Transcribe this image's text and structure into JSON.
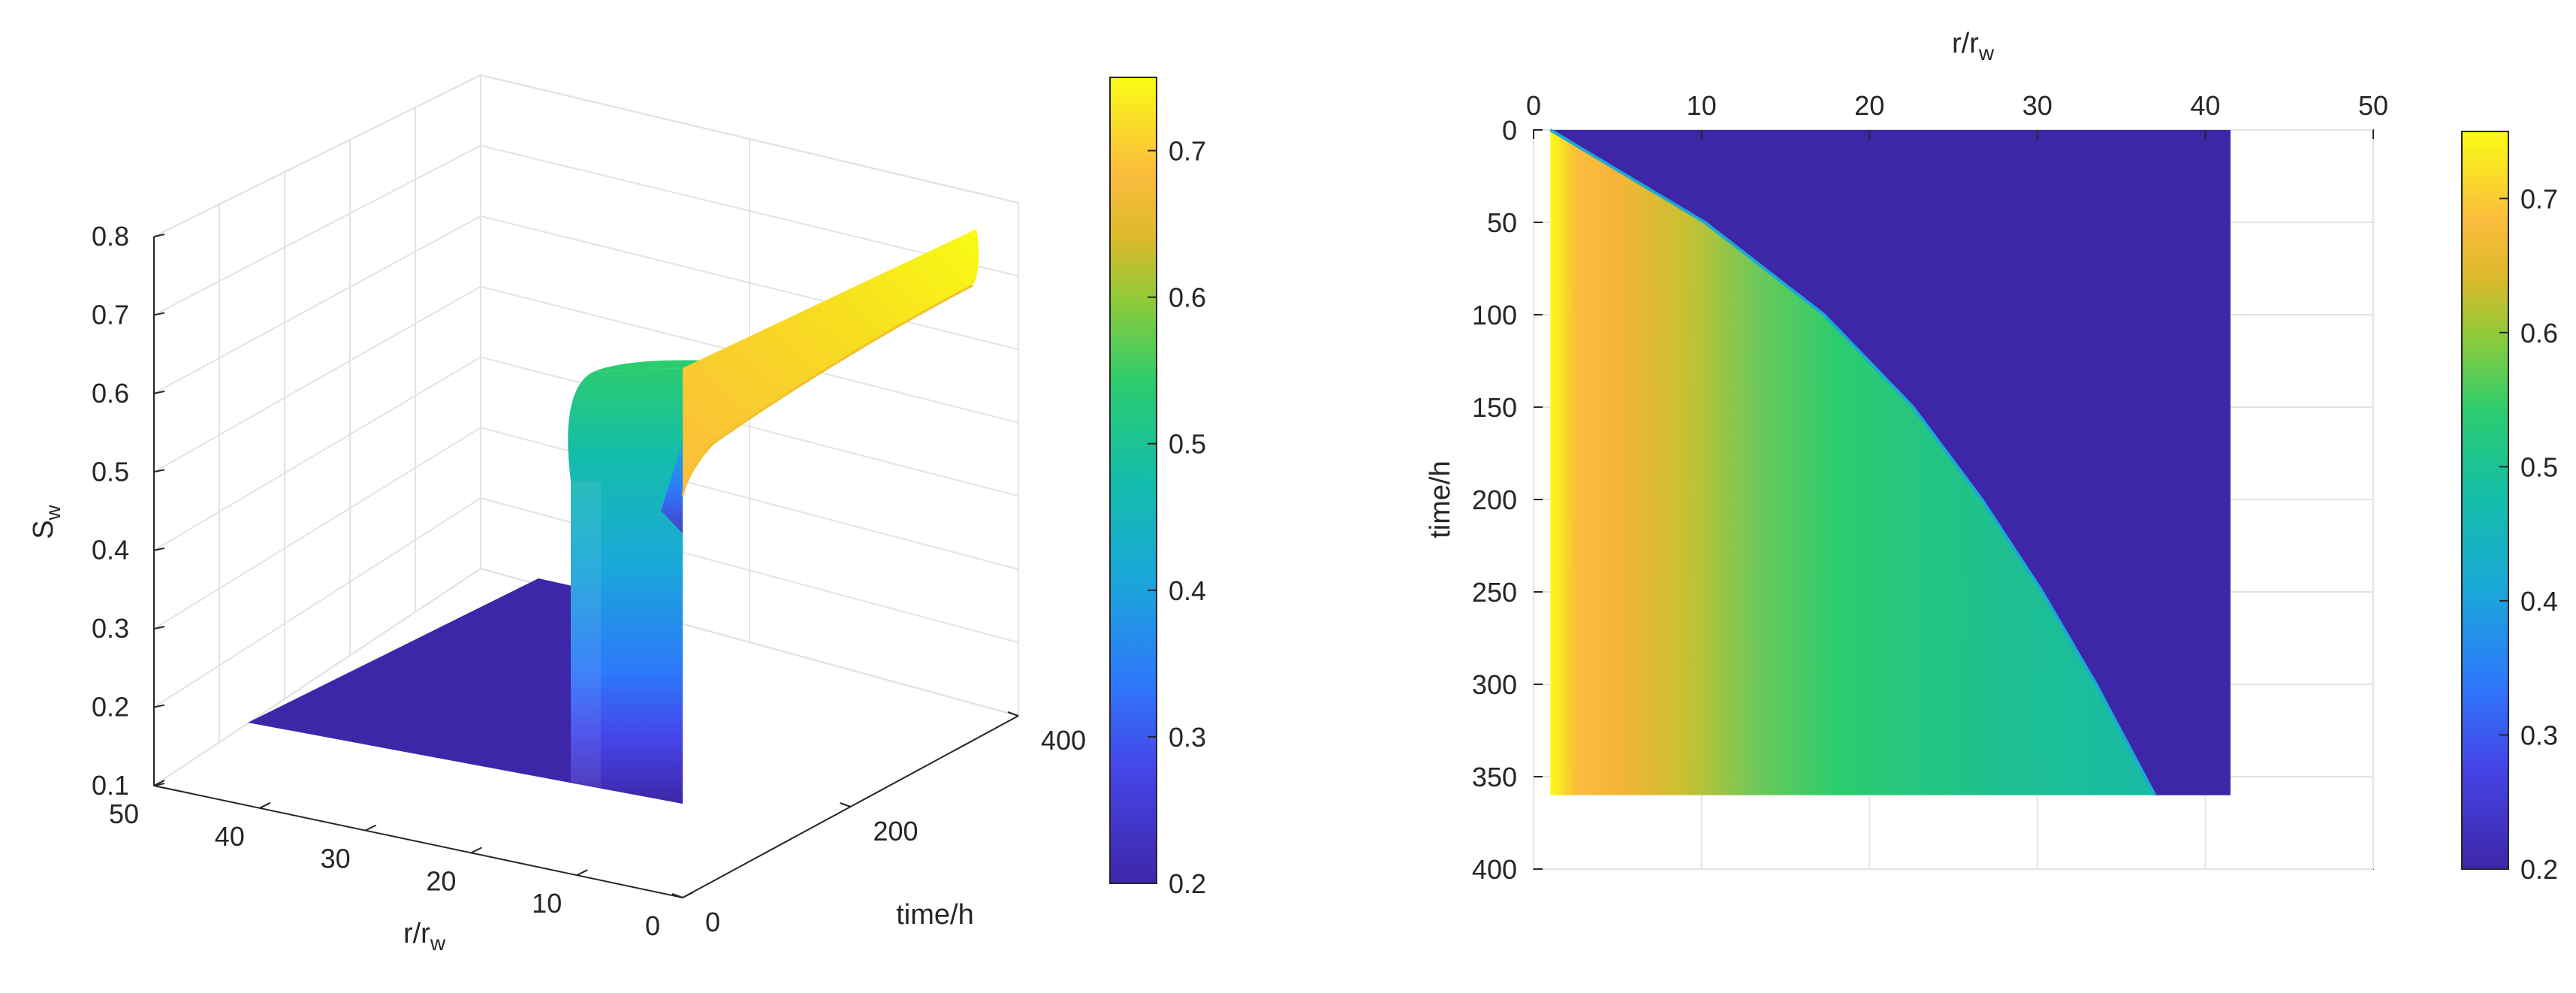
{
  "chart_data": [
    {
      "type": "surface3d",
      "title": "",
      "xlabel": "r/r",
      "xlabel_sub": "w",
      "ylabel": "time/h",
      "zlabel": "S",
      "zlabel_sub": "w",
      "x_ticks": [
        "50",
        "40",
        "30",
        "20",
        "10",
        "0"
      ],
      "y_ticks": [
        "0",
        "200",
        "400"
      ],
      "z_ticks": [
        "0.1",
        "0.2",
        "0.3",
        "0.4",
        "0.5",
        "0.6",
        "0.7",
        "0.8"
      ],
      "xlim": [
        0,
        50
      ],
      "ylim": [
        0,
        400
      ],
      "zlim": [
        0.1,
        0.8
      ],
      "colorbar": {
        "range": [
          0.2,
          0.75
        ],
        "ticks": [
          "0.2",
          "0.3",
          "0.4",
          "0.5",
          "0.6",
          "0.7"
        ]
      },
      "description_values": {
        "initial_saturation": 0.2,
        "front_saturation": 0.54,
        "well_saturation_max": 0.76,
        "time_max": 360
      }
    },
    {
      "type": "heatmap",
      "title": "",
      "xlabel": "r/r",
      "xlabel_sub": "w",
      "ylabel": "time/h",
      "x_ticks": [
        "0",
        "10",
        "20",
        "30",
        "40",
        "50"
      ],
      "y_ticks": [
        "0",
        "50",
        "100",
        "150",
        "200",
        "250",
        "300",
        "350",
        "400"
      ],
      "xlim": [
        0,
        50
      ],
      "ylim": [
        0,
        400
      ],
      "data_extent": {
        "r": [
          1,
          41.5
        ],
        "time": [
          0,
          360
        ]
      },
      "front_position": {
        "time": [
          0,
          50,
          100,
          150,
          200,
          250,
          300,
          360
        ],
        "r": [
          1,
          10.2,
          17.3,
          22.6,
          26.7,
          30.3,
          33.5,
          37
        ]
      },
      "colorbar": {
        "range": [
          0.2,
          0.75
        ],
        "ticks": [
          "0.2",
          "0.3",
          "0.4",
          "0.5",
          "0.6",
          "0.7"
        ]
      }
    }
  ]
}
